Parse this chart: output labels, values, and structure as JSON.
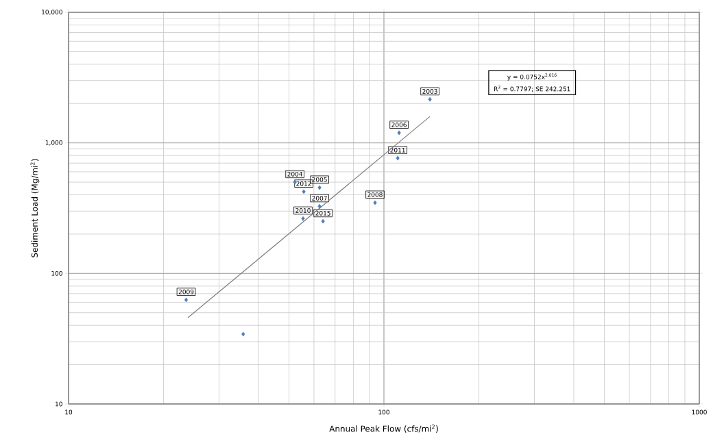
{
  "chart_data": {
    "type": "scatter",
    "xlabel": "Annual Peak Flow (cfs/mi$^{2}$)",
    "ylabel": "Sediment Load (Mg/mi$^{2}$)",
    "series": [
      {
        "color": "#4a7ebb",
        "x": [
          23.6,
          35.8,
          52.2,
          55.7,
          62.5,
          62.5,
          55.4,
          64.1,
          93.7,
          111.7,
          110.6,
          139.9
        ],
        "values": [
          62.7,
          34.3,
          500,
          423,
          454,
          327,
          263,
          251,
          348,
          1194,
          764,
          2153
        ]
      },
      {
        "type": "line",
        "color": "#808080",
        "marker": "none",
        "x": [
          23.9,
          139.9
        ],
        "values": [
          45.8,
          1592
        ]
      }
    ],
    "xlim": [
      10,
      1000
    ],
    "ylim": [
      10,
      10000
    ],
    "xticks": [
      10,
      100,
      1000
    ],
    "yticks": [
      10,
      100,
      {
        "value": 1000,
        "label": "1,000"
      },
      {
        "value": 10000,
        "label": "10,000"
      }
    ],
    "log": "xy",
    "grid": true,
    "marker": "diamond",
    "annotations": [
      {
        "text": "2009",
        "x": 23.6,
        "y": 62.7
      },
      {
        "text": "2004",
        "x": 52.2,
        "y": 500
      },
      {
        "text": "2012",
        "x": 55.7,
        "y": 423
      },
      {
        "text": "2005",
        "x": 62.5,
        "y": 454
      },
      {
        "text": "2007",
        "x": 62.5,
        "y": 327
      },
      {
        "text": "2010",
        "x": 55.4,
        "y": 263
      },
      {
        "text": "2015",
        "x": 64.1,
        "y": 251
      },
      {
        "text": "2008",
        "x": 93.7,
        "y": 348
      },
      {
        "text": "2006",
        "x": 111.7,
        "y": 1194
      },
      {
        "text": "2011",
        "x": 110.6,
        "y": 764
      },
      {
        "text": "2003",
        "x": 139.9,
        "y": 2153
      },
      "y = 0.0752x$^{2.016}$",
      "R$^{2}$ = 0.7797; SE 242.251"
    ]
  }
}
